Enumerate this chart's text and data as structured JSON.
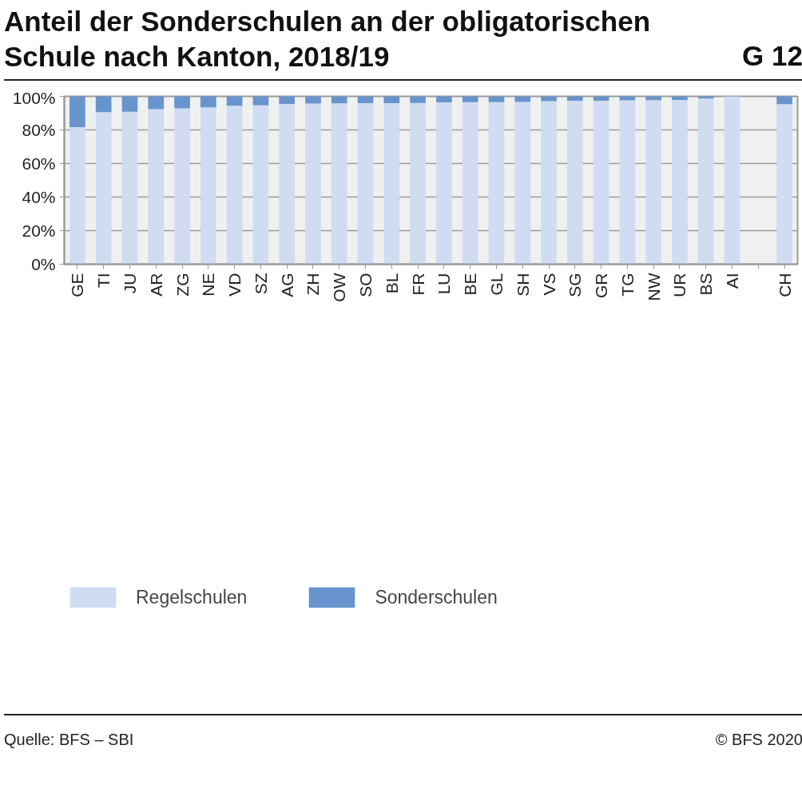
{
  "chart_data": {
    "type": "bar",
    "title": "Anteil der Sonderschulen an der obligatorischen Schule nach Kanton, 2018/19",
    "annotations": [
      "G 12",
      "Quelle: BFS – SBI",
      "© BFS 2020"
    ],
    "categories": [
      "GE",
      "TI",
      "JU",
      "AR",
      "ZG",
      "NE",
      "VD",
      "SZ",
      "AG",
      "ZH",
      "OW",
      "SO",
      "BL",
      "FR",
      "LU",
      "BE",
      "GL",
      "SH",
      "VS",
      "SG",
      "GR",
      "TG",
      "NW",
      "UR",
      "BS",
      "AI",
      null,
      "CH"
    ],
    "stacked": true,
    "series": [
      {
        "name": "Regelschulen",
        "color": "#cfdcf2",
        "values": [
          81.7,
          90.6,
          90.8,
          92.4,
          92.9,
          93.4,
          94.4,
          94.6,
          95.5,
          95.7,
          95.8,
          95.9,
          96.0,
          96.1,
          96.4,
          96.5,
          96.6,
          96.7,
          97.2,
          97.4,
          97.4,
          97.6,
          97.7,
          97.8,
          98.7,
          100,
          null,
          95.4
        ]
      },
      {
        "name": "Sonderschulen",
        "color": "#6794cc",
        "values": [
          18.3,
          9.4,
          9.2,
          7.6,
          7.1,
          6.6,
          5.6,
          5.4,
          4.5,
          4.3,
          4.2,
          4.1,
          4.0,
          3.9,
          3.6,
          3.5,
          3.4,
          3.3,
          2.8,
          2.6,
          2.6,
          2.4,
          2.3,
          2.2,
          1.3,
          0,
          null,
          4.6
        ]
      }
    ],
    "ylim": [
      0,
      100
    ],
    "yticks": [
      {
        "value": 0,
        "label": "0%"
      },
      {
        "value": 20,
        "label": "20%"
      },
      {
        "value": 40,
        "label": "40%"
      },
      {
        "value": 60,
        "label": "60%"
      },
      {
        "value": 80,
        "label": "80%"
      },
      {
        "value": 100,
        "label": "100%"
      }
    ],
    "grid": "y",
    "legend": "bottom"
  }
}
